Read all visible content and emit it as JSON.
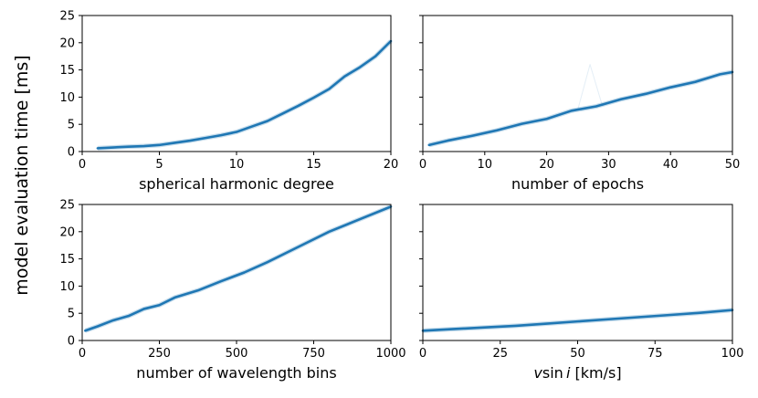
{
  "figure": {
    "ylabel": "model evaluation time [ms]",
    "line_color": "#1f77b4"
  },
  "chart_data": [
    {
      "type": "line",
      "xlabel": "spherical harmonic degree",
      "xlim": [
        0,
        20
      ],
      "ylim": [
        0,
        25
      ],
      "xticks": [
        0,
        5,
        10,
        15,
        20
      ],
      "yticks": [
        0,
        5,
        10,
        15,
        20,
        25
      ],
      "show_yticklabels": true,
      "series": [
        {
          "x": [
            1,
            2,
            3,
            4,
            5,
            6,
            7,
            8,
            9,
            10,
            11,
            12,
            13,
            14,
            15,
            16,
            17,
            18,
            19,
            20
          ],
          "values": [
            0.6,
            0.75,
            0.9,
            1.0,
            1.2,
            1.6,
            2.0,
            2.5,
            3.0,
            3.6,
            4.6,
            5.6,
            7.0,
            8.4,
            9.9,
            11.5,
            13.8,
            15.5,
            17.5,
            20.3
          ]
        }
      ]
    },
    {
      "type": "line",
      "xlabel": "number of epochs",
      "xlim": [
        0,
        50
      ],
      "ylim": [
        0,
        25
      ],
      "xticks": [
        0,
        10,
        20,
        30,
        40,
        50
      ],
      "yticks": [
        0,
        5,
        10,
        15,
        20,
        25
      ],
      "show_yticklabels": false,
      "series": [
        {
          "x": [
            1,
            4,
            8,
            12,
            16,
            20,
            24,
            28,
            32,
            36,
            40,
            44,
            48,
            50
          ],
          "values": [
            1.2,
            2.0,
            2.9,
            3.9,
            5.1,
            6.0,
            7.5,
            8.3,
            9.6,
            10.6,
            11.8,
            12.8,
            14.2,
            14.6
          ]
        },
        {
          "x": [
            1,
            10,
            20,
            25,
            27,
            29,
            32,
            38,
            45,
            50
          ],
          "values": [
            1.2,
            3.6,
            6.1,
            7.6,
            16.0,
            8.4,
            9.8,
            11.2,
            13.4,
            14.7
          ],
          "faint": true
        }
      ]
    },
    {
      "type": "line",
      "xlabel": "number of wavelength bins",
      "xlim": [
        0,
        1000
      ],
      "ylim": [
        0,
        25
      ],
      "xticks": [
        0,
        250,
        500,
        750,
        1000
      ],
      "yticks": [
        0,
        5,
        10,
        15,
        20,
        25
      ],
      "show_yticklabels": true,
      "series": [
        {
          "x": [
            10,
            50,
            100,
            150,
            200,
            250,
            300,
            375,
            450,
            525,
            600,
            700,
            800,
            900,
            1000
          ],
          "values": [
            1.8,
            2.6,
            3.7,
            4.5,
            5.8,
            6.5,
            7.9,
            9.2,
            10.9,
            12.5,
            14.4,
            17.2,
            20.0,
            22.3,
            24.6
          ]
        }
      ]
    },
    {
      "type": "line",
      "xlabel": "vsin i [km/s]",
      "xlim": [
        0,
        100
      ],
      "ylim": [
        0,
        25
      ],
      "xticks": [
        0,
        25,
        50,
        75,
        100
      ],
      "yticks": [
        0,
        5,
        10,
        15,
        20,
        25
      ],
      "show_yticklabels": false,
      "series": [
        {
          "x": [
            0,
            10,
            20,
            30,
            40,
            50,
            60,
            70,
            80,
            90,
            100
          ],
          "values": [
            1.8,
            2.1,
            2.4,
            2.7,
            3.1,
            3.5,
            3.9,
            4.3,
            4.7,
            5.1,
            5.6
          ]
        }
      ]
    }
  ]
}
